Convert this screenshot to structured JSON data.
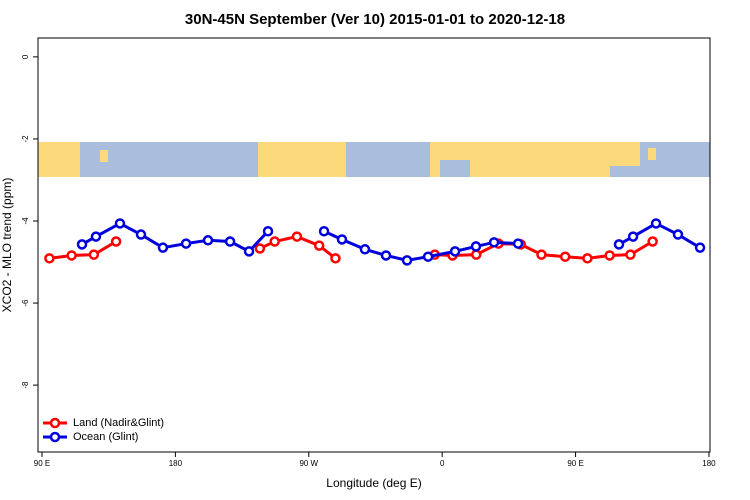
{
  "chart_data": {
    "type": "line",
    "title": "30N-45N September (Ver 10)   2015-01-01 to 2020-12-18",
    "x_label": "Longitude (deg E)",
    "y_label": "XCO2 - MLO trend (ppm)",
    "xlim": [
      87.3,
      540.7
    ],
    "ylim": [
      -9.63,
      0.46
    ],
    "xticks": [
      {
        "value": 90,
        "label": "90 E"
      },
      180,
      {
        "value": 270,
        "label": "90 W"
      },
      {
        "value": 360,
        "label": "0"
      },
      {
        "value": 450,
        "label": "90 E"
      },
      {
        "value": 540,
        "label": "180"
      }
    ],
    "yticks": [
      0,
      -2,
      -4,
      -6,
      -8
    ],
    "legend": "bottom-left",
    "series": [
      {
        "name": "Land (Nadir&Glint)",
        "color": "#ff0000",
        "x": [
          95,
          110,
          125,
          140,
          null,
          237,
          247,
          262,
          277,
          288,
          null,
          355,
          367,
          383,
          398,
          413,
          427,
          443,
          458,
          473,
          487,
          502
        ],
        "values": [
          -4.91,
          -4.84,
          -4.82,
          -4.5,
          null,
          -4.67,
          -4.5,
          -4.38,
          -4.6,
          -4.91,
          null,
          -4.82,
          -4.84,
          -4.82,
          -4.55,
          -4.57,
          -4.82,
          -4.87,
          -4.91,
          -4.84,
          -4.82,
          -4.5
        ]
      },
      {
        "name": "Ocean (Glint)",
        "color": "#0000dd",
        "x": [
          117,
          126.4,
          142.6,
          156.8,
          171.6,
          187.2,
          202,
          216.9,
          229.7,
          242.5,
          null,
          280.3,
          292.4,
          307.9,
          322.1,
          336.3,
          350.5,
          368.7,
          382.8,
          395,
          411.2,
          null,
          479.3,
          488.8,
          504.3,
          519.1,
          534
        ],
        "values": [
          -4.57,
          -4.38,
          -4.06,
          -4.33,
          -4.65,
          -4.55,
          -4.47,
          -4.5,
          -4.74,
          -4.25,
          null,
          -4.25,
          -4.45,
          -4.69,
          -4.84,
          -4.96,
          -4.87,
          -4.74,
          -4.62,
          -4.52,
          -4.55,
          null,
          -4.57,
          -4.38,
          -4.06,
          -4.33,
          -4.65
        ]
      }
    ]
  }
}
